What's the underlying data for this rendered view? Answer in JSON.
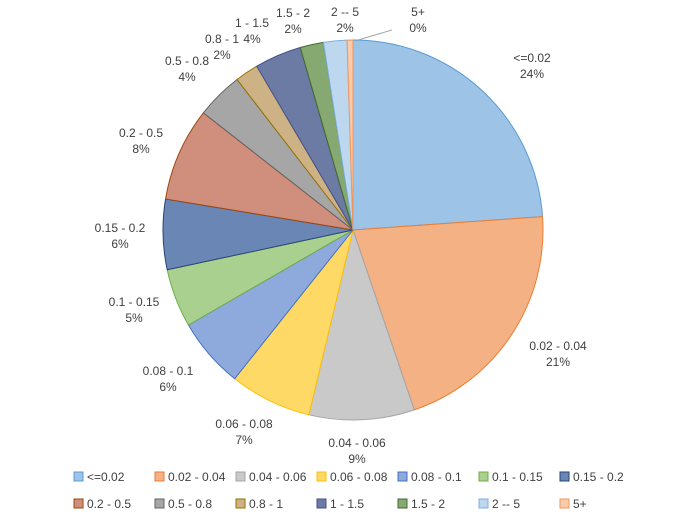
{
  "chart_data": {
    "type": "pie",
    "title": "",
    "legend_position": "bottom",
    "slices": [
      {
        "category": "<=0.02",
        "value": 24,
        "label": "24%",
        "color": "#9DC3E6",
        "stroke": "#5B9BD5"
      },
      {
        "category": "0.02 - 0.04",
        "value": 21,
        "label": "21%",
        "color": "#F4B183",
        "stroke": "#ED7D31"
      },
      {
        "category": "0.04 - 0.06",
        "value": 9,
        "label": "9%",
        "color": "#C9C9C9",
        "stroke": "#A5A5A5"
      },
      {
        "category": "0.06 - 0.08",
        "value": 7,
        "label": "7%",
        "color": "#FFD966",
        "stroke": "#FFC000"
      },
      {
        "category": "0.08 - 0.1",
        "value": 6,
        "label": "6%",
        "color": "#8EA9DB",
        "stroke": "#4472C4"
      },
      {
        "category": "0.1 - 0.15",
        "value": 5,
        "label": "5%",
        "color": "#A9D08E",
        "stroke": "#70AD47"
      },
      {
        "category": "0.15 - 0.2",
        "value": 6,
        "label": "6%",
        "color": "#6A86B4",
        "stroke": "#264478"
      },
      {
        "category": "0.2 -  0.5",
        "value": 8,
        "label": "8%",
        "color": "#D08E7C",
        "stroke": "#9E480E"
      },
      {
        "category": "0.5 - 0.8",
        "value": 4,
        "label": "4%",
        "color": "#A6A6A6",
        "stroke": "#636363"
      },
      {
        "category": "0.8 - 1",
        "value": 2,
        "label": "2%",
        "color": "#CCB285",
        "stroke": "#997300"
      },
      {
        "category": "1 - 1.5",
        "value": 4,
        "label": "4%",
        "color": "#6C7BA3",
        "stroke": "#43518F"
      },
      {
        "category": "1.5 - 2",
        "value": 2,
        "label": "2%",
        "color": "#86A871",
        "stroke": "#43682B"
      },
      {
        "category": "2 -- 5",
        "value": 2,
        "label": "2%",
        "color": "#BDD7EE",
        "stroke": "#7CAFDD"
      },
      {
        "category": "5+",
        "value": 0.5,
        "label": "0%",
        "color": "#F8CBAD",
        "stroke": "#F1975A"
      }
    ]
  }
}
